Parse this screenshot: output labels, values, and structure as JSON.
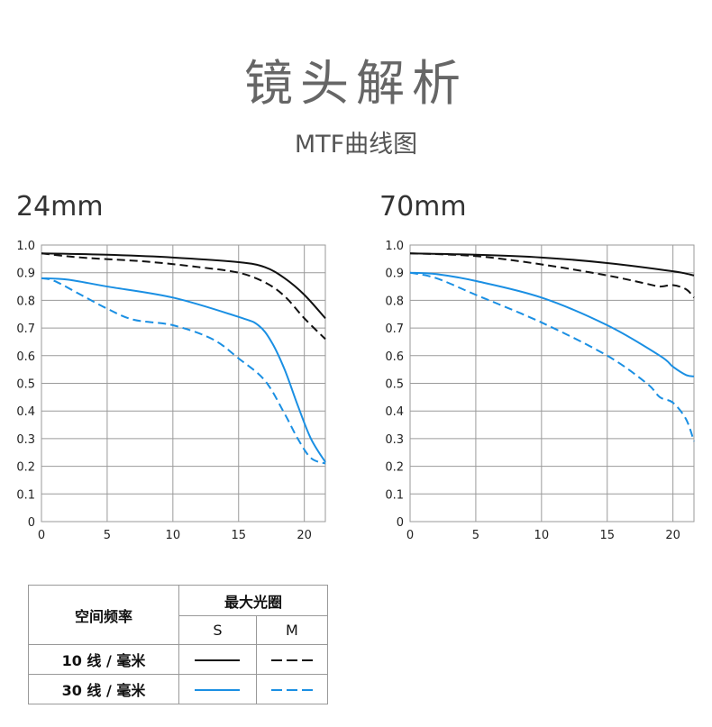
{
  "header": {
    "title": "镜头解析",
    "subtitle": "MTF曲线图"
  },
  "colors": {
    "black_line": "#111111",
    "blue_line": "#1a8fe3",
    "grid": "#9a9a9a"
  },
  "chart_data": [
    {
      "type": "line",
      "title": "24mm",
      "xlabel": "",
      "ylabel": "",
      "xlim": [
        0,
        21.6
      ],
      "ylim": [
        0,
        1.0
      ],
      "xticks": [
        "0",
        "5",
        "10",
        "15",
        "20"
      ],
      "yticks": [
        "0",
        "0.1",
        "0.2",
        "0.3",
        "0.4",
        "0.5",
        "0.6",
        "0.7",
        "0.8",
        "0.9",
        "1.0"
      ],
      "grid": true,
      "series": [
        {
          "style": "solid",
          "color": "#111111",
          "x": [
            0,
            5,
            10,
            15,
            17,
            18.5,
            20,
            21.6
          ],
          "y": [
            0.97,
            0.965,
            0.955,
            0.938,
            0.92,
            0.88,
            0.82,
            0.735
          ]
        },
        {
          "style": "dashed",
          "color": "#111111",
          "x": [
            0,
            3,
            8,
            12,
            15,
            17,
            18.5,
            20,
            21.6
          ],
          "y": [
            0.97,
            0.955,
            0.94,
            0.92,
            0.9,
            0.865,
            0.815,
            0.735,
            0.66
          ]
        },
        {
          "style": "solid",
          "color": "#1a8fe3",
          "x": [
            0,
            2,
            5,
            10,
            15,
            16.5,
            17.5,
            18.5,
            19.5,
            20.5,
            21.6
          ],
          "y": [
            0.88,
            0.875,
            0.85,
            0.81,
            0.74,
            0.71,
            0.65,
            0.55,
            0.42,
            0.3,
            0.215
          ]
        },
        {
          "style": "dashed",
          "color": "#1a8fe3",
          "x": [
            0,
            1,
            3,
            5,
            7,
            10,
            13,
            15,
            17,
            18.5,
            19.5,
            20.5,
            21.6
          ],
          "y": [
            0.88,
            0.87,
            0.82,
            0.77,
            0.73,
            0.71,
            0.66,
            0.59,
            0.51,
            0.39,
            0.3,
            0.23,
            0.21
          ]
        }
      ]
    },
    {
      "type": "line",
      "title": "70mm",
      "xlabel": "",
      "ylabel": "",
      "xlim": [
        0,
        21.6
      ],
      "ylim": [
        0,
        1.0
      ],
      "xticks": [
        "0",
        "5",
        "10",
        "15",
        "20"
      ],
      "yticks": [
        "0",
        "0.1",
        "0.2",
        "0.3",
        "0.4",
        "0.5",
        "0.6",
        "0.7",
        "0.8",
        "0.9",
        "1.0"
      ],
      "grid": true,
      "series": [
        {
          "style": "solid",
          "color": "#111111",
          "x": [
            0,
            5,
            10,
            15,
            20,
            21.6
          ],
          "y": [
            0.97,
            0.965,
            0.955,
            0.935,
            0.905,
            0.89
          ]
        },
        {
          "style": "dashed",
          "color": "#111111",
          "x": [
            0,
            5,
            10,
            15,
            18,
            19,
            20,
            21,
            21.6
          ],
          "y": [
            0.97,
            0.96,
            0.93,
            0.89,
            0.86,
            0.85,
            0.855,
            0.84,
            0.81
          ]
        },
        {
          "style": "solid",
          "color": "#1a8fe3",
          "x": [
            0,
            2,
            5,
            10,
            15,
            19,
            20,
            21,
            21.6
          ],
          "y": [
            0.9,
            0.895,
            0.87,
            0.81,
            0.71,
            0.6,
            0.56,
            0.53,
            0.525
          ]
        },
        {
          "style": "dashed",
          "color": "#1a8fe3",
          "x": [
            0,
            2,
            5,
            10,
            15,
            18,
            19,
            20,
            21,
            21.6
          ],
          "y": [
            0.9,
            0.88,
            0.82,
            0.72,
            0.6,
            0.5,
            0.45,
            0.43,
            0.37,
            0.29
          ]
        }
      ]
    }
  ],
  "legend": {
    "spatial_freq_label": "空间频率",
    "max_aperture_label": "最大光圈",
    "s_label": "S",
    "m_label": "M",
    "row_10": "10 线 / 毫米",
    "row_30": "30 线 / 毫米"
  }
}
